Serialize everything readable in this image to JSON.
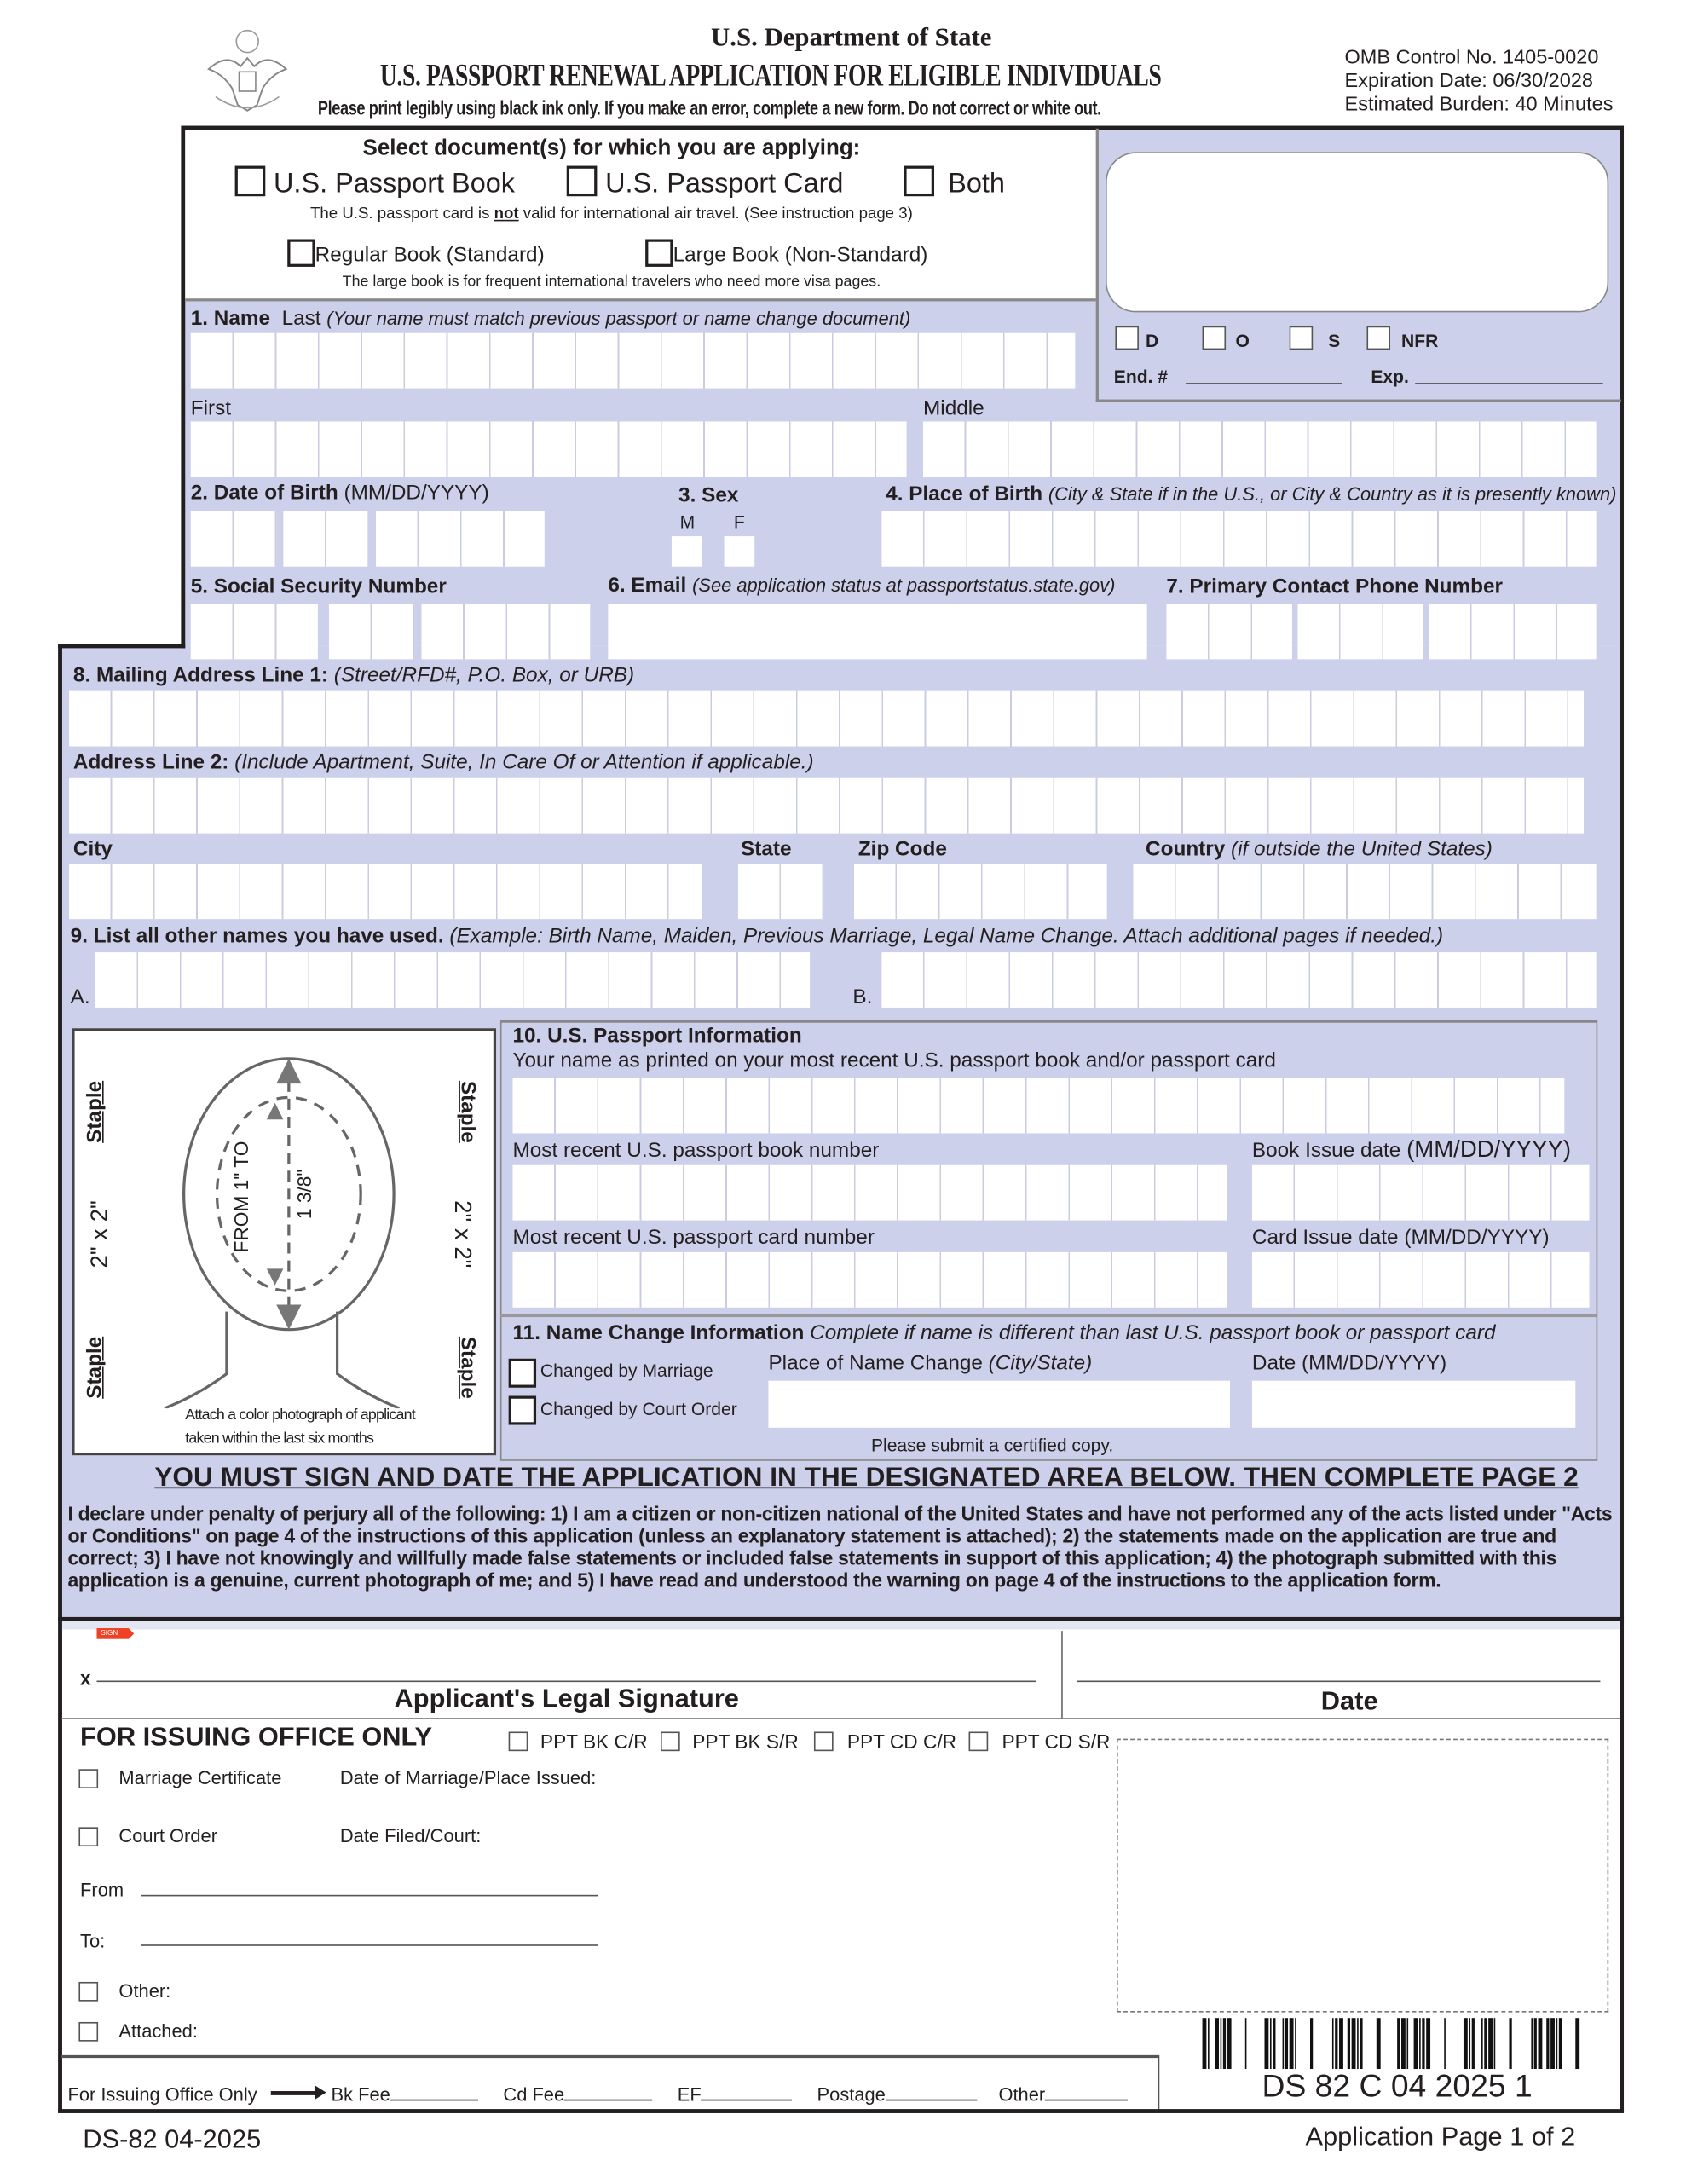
{
  "header": {
    "department": "U.S. Department of State",
    "title": "U.S. PASSPORT RENEWAL APPLICATION FOR ELIGIBLE INDIVIDUALS",
    "instructions": "Please print legibly using black ink only. If you make an error, complete a new form. Do not correct or white out.",
    "omb": "OMB Control No. 1405-0020",
    "expiration": "Expiration Date: 06/30/2028",
    "burden": "Estimated Burden: 40 Minutes",
    "seal_icon": "us-department-of-state-seal"
  },
  "doc_select": {
    "heading": "Select document(s) for which you are applying:",
    "options": [
      "U.S. Passport Book",
      "U.S. Passport Card",
      "Both"
    ],
    "card_note_pre": "The U.S. passport card is ",
    "card_note_em": "not",
    "card_note_post": " valid for international air travel. (See instruction page 3)",
    "book_options": [
      "Regular Book (Standard)",
      "Large Book (Non-Standard)"
    ],
    "book_note": "The large book is for frequent international travelers who need more visa pages."
  },
  "office_top": {
    "checks": [
      "D",
      "O",
      "S",
      "NFR"
    ],
    "end_label": "End. #",
    "exp_label": "Exp."
  },
  "fields": {
    "name_num": "1.  Name",
    "name_last": "Last",
    "name_hint": "(Your name must match previous passport or name change document)",
    "first": "First",
    "middle": "Middle",
    "dob": "2.  Date of Birth",
    "dob_fmt": "(MM/DD/YYYY)",
    "sex": "3. Sex",
    "sex_m": "M",
    "sex_f": "F",
    "pob": "4.  Place of Birth",
    "pob_hint": "(City & State if in the U.S., or City & Country as it is presently known)",
    "ssn": "5.  Social Security Number",
    "email": "6. Email",
    "email_hint": "(See application status at passportstatus.state.gov)",
    "phone": "7. Primary Contact Phone Number",
    "addr1": "8. Mailing Address Line 1:",
    "addr1_hint": "(Street/RFD#, P.O. Box, or URB)",
    "addr2": "Address Line 2:",
    "addr2_hint": "(Include Apartment, Suite, In Care Of or Attention if applicable.)",
    "city": "City",
    "state": "State",
    "zip": "Zip Code",
    "country": "Country",
    "country_hint": "(if outside the United States)",
    "other_names": "9. List all other names you have used.",
    "other_names_hint": "(Example: Birth Name, Maiden, Previous Marriage, Legal Name Change.  Attach additional  pages if needed.)",
    "a": "A.",
    "b": "B."
  },
  "photo": {
    "staple": "Staple",
    "size": "2\" x 2\"",
    "from": "FROM 1\" TO",
    "to": "1 3/8\"",
    "caption1": "Attach a color photograph of applicant",
    "caption2": "taken within the last six months"
  },
  "passport_info": {
    "heading": "10. U.S. Passport  Information",
    "name_label": "Your name as printed on your most recent U.S. passport book and/or passport card",
    "book_num": "Most recent U.S. passport book number",
    "book_date": "Book Issue date",
    "book_date_fmt": "(MM/DD/YYYY)",
    "card_num": "Most recent U.S. passport card number",
    "card_date": "Card Issue date (MM/DD/YYYY)"
  },
  "name_change": {
    "heading": "11. Name Change Information",
    "hint": "Complete if name is different than last U.S. passport book or passport card",
    "marriage": "Changed by Marriage",
    "court": "Changed by Court Order",
    "place": "Place of Name Change",
    "place_hint": "(City/State)",
    "date": "Date (MM/DD/YYYY)",
    "certified": "Please submit a certified copy."
  },
  "declaration": {
    "heading": "YOU MUST SIGN AND DATE THE APPLICATION IN THE DESIGNATED AREA BELOW.  THEN COMPLETE PAGE 2",
    "text": "I declare under penalty of perjury all of the following: 1) I am a citizen or non-citizen national of the United States and have not performed any of the acts listed under \"Acts or Conditions\" on page 4 of the instructions of this application (unless an explanatory statement is attached); 2) the statements made on the application are true and correct; 3) I have not knowingly and willfully made false statements or included false statements in support of this application; 4) the photograph submitted with this application is a genuine, current photograph of me; and 5) I have read and understood the warning on page 4 of the instructions to the application form."
  },
  "signature": {
    "sign_tag": "SIGN",
    "x": "x",
    "sig_label": "Applicant's Legal Signature",
    "date_label": "Date"
  },
  "issuing": {
    "heading": "FOR ISSUING OFFICE ONLY",
    "checks": [
      "PPT BK C/R",
      "PPT BK S/R",
      "PPT CD C/R",
      "PPT CD S/R"
    ],
    "marriage_cert": "Marriage Certificate",
    "marriage_date": "Date of Marriage/Place Issued:",
    "court_order": "Court Order",
    "date_filed": "Date Filed/Court:",
    "from": "From",
    "to": "To:",
    "other": "Other:",
    "attached": "Attached:",
    "fee_row": "For Issuing Office Only",
    "fees": [
      "Bk Fee",
      "Cd Fee",
      "EF",
      "Postage",
      "Other"
    ]
  },
  "barcode_text": "DS 82 C 04 2025 1",
  "footer": {
    "form": "DS-82 04-2025",
    "page": "Application Page 1 of 2"
  },
  "colors": {
    "section_bg": "#ccd0ea",
    "sign_tag": "#ef4123"
  }
}
